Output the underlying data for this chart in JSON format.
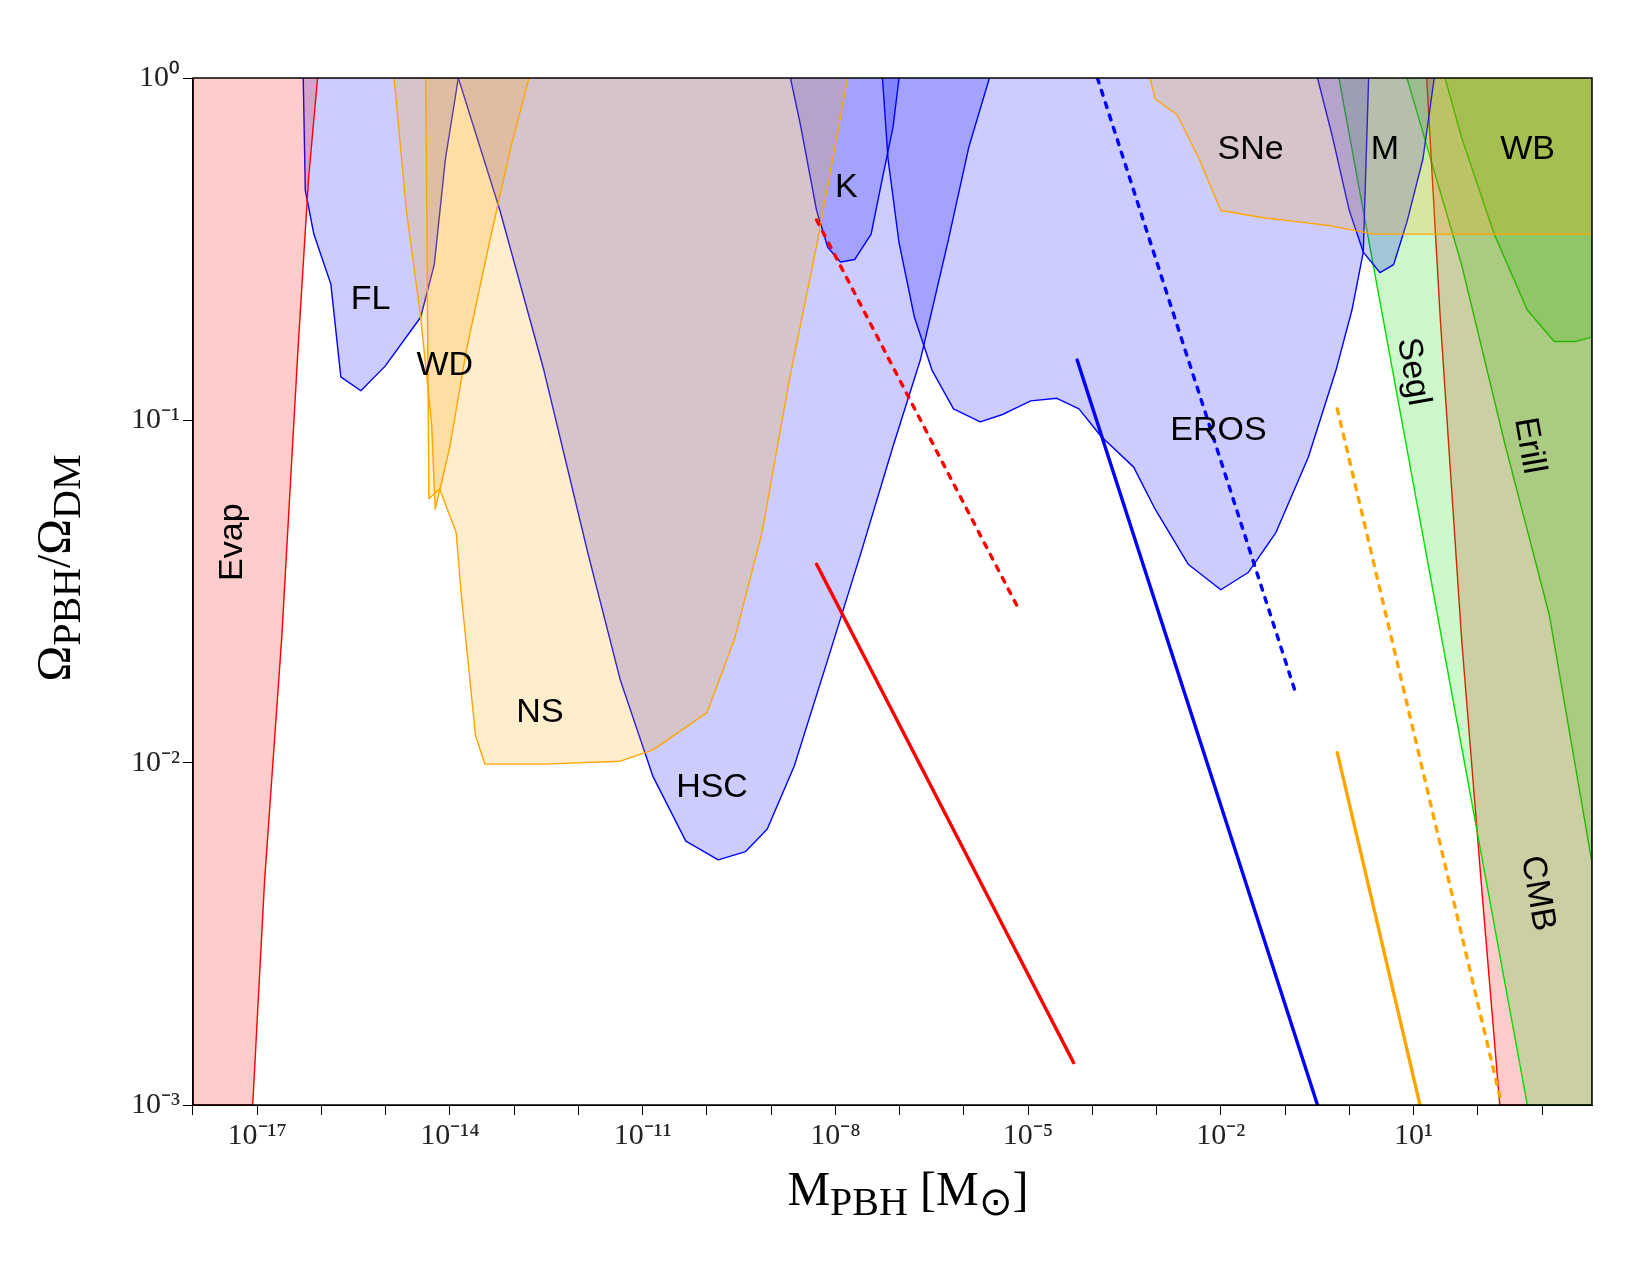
{
  "chart_data": {
    "type": "area",
    "xlabel": "M$_{PBH}$ [M$_{⊙}$]",
    "ylabel": "Ω$_{PBH}$/Ω$_{DM}$",
    "log": "xy",
    "legend": false,
    "marker": "none",
    "xlim": [
      1e-18,
      6000
    ],
    "ylim": [
      0.001,
      1
    ],
    "xticks": [
      {
        "value": 1e-18,
        "label": null
      },
      {
        "value": 1e-17,
        "label": "10⁻¹⁷"
      },
      {
        "value": 1e-16,
        "label": null
      },
      {
        "value": 1e-15,
        "label": null
      },
      {
        "value": 1e-14,
        "label": "10⁻¹⁴"
      },
      {
        "value": 1e-13,
        "label": null
      },
      {
        "value": 1e-12,
        "label": null
      },
      {
        "value": 1e-11,
        "label": "10⁻¹¹"
      },
      {
        "value": 1e-10,
        "label": null
      },
      {
        "value": 1e-09,
        "label": null
      },
      {
        "value": 1e-08,
        "label": "10⁻⁸"
      },
      {
        "value": 1e-07,
        "label": null
      },
      {
        "value": 1e-06,
        "label": null
      },
      {
        "value": 1e-05,
        "label": "10⁻⁵"
      },
      {
        "value": 0.0001,
        "label": null
      },
      {
        "value": 0.001,
        "label": null
      },
      {
        "value": 0.01,
        "label": "10⁻²"
      },
      {
        "value": 0.1,
        "label": null
      },
      {
        "value": 1,
        "label": null
      },
      {
        "value": 10,
        "label": "10¹"
      },
      {
        "value": 100,
        "label": null
      },
      {
        "value": 1000,
        "label": null
      }
    ],
    "yticks": [
      {
        "value": 0.001,
        "label": "10⁻³"
      },
      {
        "value": 0.01,
        "label": "10⁻²"
      },
      {
        "value": 0.1,
        "label": "10⁻¹"
      },
      {
        "value": 1,
        "label": "10⁰"
      }
    ],
    "series": [
      {
        "name": "Evap",
        "color": "#ff0000",
        "x": [
          1e-18,
          1e-18,
          8.5e-18,
          1.3e-17,
          2.4e-17,
          4.3e-17,
          6.3e-17,
          8.7e-17
        ],
        "values": [
          1,
          0.001,
          0.001,
          0.0045,
          0.023,
          0.16,
          0.51,
          1
        ]
      },
      {
        "name": "WD",
        "color": "#ffa500",
        "x": [
          1.35e-15,
          2.1e-15,
          3.5e-15,
          5.2e-15,
          5.9e-15,
          1e-14,
          1.8e-14,
          4.1e-14,
          8.9e-14,
          1.7e-13
        ],
        "values": [
          1,
          0.41,
          0.2,
          0.097,
          0.055,
          0.084,
          0.16,
          0.33,
          0.63,
          1
        ]
      },
      {
        "name": "NS",
        "color": "#ffa500",
        "x": [
          4.2e-15,
          4.7e-15,
          6.9e-15,
          1.25e-14,
          1.5e-14,
          2.5e-14,
          3.5e-14,
          2.9e-13,
          4.5e-12,
          1.45e-11,
          1e-10,
          2.7e-10,
          7.2e-10,
          1.9e-09,
          5.2e-09,
          1.05e-08,
          1.55e-08
        ],
        "values": [
          1,
          0.059,
          0.063,
          0.047,
          0.031,
          0.012,
          0.0099,
          0.0099,
          0.0101,
          0.0109,
          0.014,
          0.023,
          0.047,
          0.13,
          0.33,
          0.67,
          1
        ]
      },
      {
        "name": "SNe",
        "color": "#ffa500",
        "x": [
          0.00079,
          0.00095,
          0.0021,
          0.0046,
          0.01,
          0.049,
          0.16,
          0.51,
          2.4,
          12,
          6000,
          6000
        ],
        "values": [
          1,
          0.87,
          0.78,
          0.58,
          0.41,
          0.39,
          0.38,
          0.37,
          0.35,
          0.35,
          0.35,
          1
        ]
      },
      {
        "name": "FL",
        "color": "#0000ff",
        "x": [
          5.2e-17,
          5.6e-17,
          7.6e-17,
          1.4e-16,
          2e-16,
          4.1e-16,
          9.8e-16,
          3.5e-15,
          5.7e-15,
          8.5e-15,
          1.35e-14
        ],
        "values": [
          1,
          0.47,
          0.35,
          0.25,
          0.134,
          0.122,
          0.144,
          0.2,
          0.285,
          0.58,
          1
        ]
      },
      {
        "name": "HSC",
        "color": "#0000ff",
        "x": [
          1.35e-14,
          6e-14,
          2.9e-13,
          1.4e-12,
          4.5e-12,
          1.45e-11,
          4.7e-11,
          1.5e-10,
          4e-10,
          8.7e-10,
          2.3e-09,
          7.6e-09,
          2.5e-08,
          7.9e-08,
          2.1e-07,
          5.6e-07,
          1.2e-06,
          2.5e-06
        ],
        "values": [
          1,
          0.41,
          0.14,
          0.041,
          0.0174,
          0.0091,
          0.0059,
          0.0052,
          0.0055,
          0.0064,
          0.0098,
          0.02,
          0.041,
          0.084,
          0.15,
          0.33,
          0.63,
          1
        ]
      },
      {
        "name": "K",
        "color": "#0000ff",
        "x": [
          2e-09,
          2.9e-09,
          5.1e-09,
          7.6e-09,
          1.2e-08,
          2e-08,
          3.6e-08,
          5.4e-08,
          7.9e-08,
          9.8e-08
        ],
        "values": [
          1,
          0.72,
          0.41,
          0.32,
          0.29,
          0.295,
          0.35,
          0.51,
          0.72,
          1
        ]
      },
      {
        "name": "EROS",
        "color": "#0000ff",
        "x": [
          5.4e-08,
          6.6e-08,
          9.8e-08,
          1.7e-07,
          3.2e-07,
          6.9e-07,
          1.8e-06,
          4e-06,
          1.1e-05,
          2.8e-05,
          6.2e-05,
          0.000135,
          0.00044,
          0.00095,
          0.0031,
          0.01,
          0.027,
          0.072,
          0.23,
          0.62,
          1.1,
          1.65,
          2.0
        ],
        "values": [
          1,
          0.58,
          0.33,
          0.2,
          0.14,
          0.108,
          0.099,
          0.104,
          0.114,
          0.116,
          0.108,
          0.09,
          0.073,
          0.055,
          0.038,
          0.032,
          0.036,
          0.047,
          0.078,
          0.14,
          0.21,
          0.31,
          1
        ]
      },
      {
        "name": "M",
        "color": "#0000ff",
        "x": [
          0.32,
          0.55,
          1.0,
          1.65,
          3.0,
          4.9,
          7.9,
          14,
          21
        ],
        "values": [
          1,
          0.67,
          0.41,
          0.31,
          0.27,
          0.285,
          0.38,
          0.58,
          1
        ]
      },
      {
        "name": "Segl",
        "color": "#00dd00",
        "x": [
          0.69,
          590,
          6000,
          6000
        ],
        "values": [
          1,
          0.001,
          0.001,
          1
        ]
      },
      {
        "name": "CMB",
        "color": "#ff0000",
        "x": [
          16,
          26,
          56,
          120,
          220,
          6000,
          6000
        ],
        "values": [
          1,
          0.2,
          0.023,
          0.0039,
          0.001,
          0.001,
          1
        ]
      },
      {
        "name": "Erill",
        "color": "#00dd00",
        "x": [
          7.9,
          56,
          270,
          1300,
          6000,
          6000
        ],
        "values": [
          1,
          0.285,
          0.084,
          0.027,
          0.0051,
          1
        ]
      },
      {
        "name": "WB",
        "color": "#00dd00",
        "x": [
          31,
          56,
          180,
          590,
          1550,
          3400,
          6000,
          6000
        ],
        "values": [
          1,
          0.67,
          0.35,
          0.21,
          0.17,
          0.17,
          0.175,
          1
        ]
      },
      {
        "type": "line",
        "line_style": "dashed",
        "color": "#ff0000",
        "x": [
          5.1e-09,
          7.2e-06
        ],
        "values": [
          0.385,
          0.028
        ]
      },
      {
        "type": "line",
        "line_style": "solid",
        "color": "#ff0000",
        "x": [
          5.1e-09,
          5.1e-05
        ],
        "values": [
          0.038,
          0.00133
        ]
      },
      {
        "type": "line",
        "line_style": "dashed",
        "color": "#0000ff",
        "x": [
          0.00012,
          0.14
        ],
        "values": [
          1,
          0.0164
        ]
      },
      {
        "type": "line",
        "line_style": "solid",
        "color": "#0000ff",
        "x": [
          5.8e-05,
          0.32
        ],
        "values": [
          0.15,
          0.001
        ]
      },
      {
        "type": "line",
        "line_style": "dashed",
        "color": "#ffa500",
        "x": [
          0.65,
          220
        ],
        "values": [
          0.108,
          0.00106
        ]
      },
      {
        "type": "line",
        "line_style": "solid",
        "color": "#ffa500",
        "x": [
          0.65,
          12.6
        ],
        "values": [
          0.0107,
          0.001
        ]
      }
    ]
  }
}
